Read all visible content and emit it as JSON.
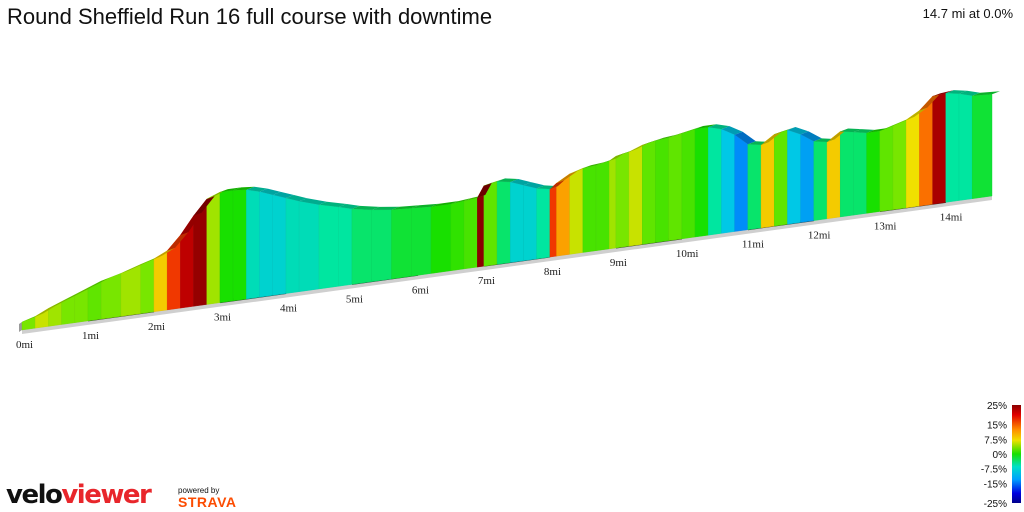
{
  "title": "Round Sheffield Run 16 full course with downtime",
  "summary": "14.7 mi at 0.0%",
  "branding": {
    "logo_part1": "velo",
    "logo_part2": "viewer",
    "powered_by": "powered by",
    "strava": "STRAVA"
  },
  "colors": {
    "logo_red": "#e8262b",
    "strava_orange": "#fc4c02",
    "base_line": "#cfcfcf",
    "mile_marker": "#333333"
  },
  "chart_data": {
    "type": "area",
    "xlabel": "",
    "ylabel": "",
    "x_unit": "mi",
    "x_range": [
      0,
      14.7
    ],
    "tick_labels": [
      "0mi",
      "1mi",
      "2mi",
      "3mi",
      "4mi",
      "5mi",
      "6mi",
      "7mi",
      "8mi",
      "9mi",
      "10mi",
      "11mi",
      "12mi",
      "13mi",
      "14mi"
    ],
    "profile": {
      "x": [
        0,
        0.2,
        0.4,
        0.6,
        0.8,
        1.0,
        1.2,
        1.5,
        1.8,
        2.0,
        2.2,
        2.4,
        2.6,
        2.8,
        3.0,
        3.2,
        3.4,
        3.6,
        3.8,
        4.0,
        4.2,
        4.5,
        4.8,
        5.0,
        5.3,
        5.6,
        5.9,
        6.2,
        6.5,
        6.7,
        6.9,
        7.0,
        7.2,
        7.4,
        7.6,
        7.8,
        8.0,
        8.1,
        8.3,
        8.5,
        8.7,
        8.9,
        9.0,
        9.2,
        9.4,
        9.6,
        9.8,
        10.0,
        10.2,
        10.4,
        10.6,
        10.8,
        11.0,
        11.2,
        11.4,
        11.6,
        11.8,
        12.0,
        12.2,
        12.4,
        12.6,
        12.8,
        13.0,
        13.2,
        13.4,
        13.6,
        13.8,
        14.0,
        14.2,
        14.4,
        14.7
      ],
      "elevation": [
        0,
        3,
        8,
        12,
        16,
        20,
        24,
        28,
        33,
        36,
        41,
        52,
        66,
        78,
        82,
        82,
        81,
        78,
        74,
        70,
        66,
        61,
        57,
        54,
        51,
        49,
        48,
        47,
        47,
        48,
        49,
        58,
        60,
        58,
        54,
        50,
        48,
        52,
        58,
        61,
        62,
        64,
        67,
        69,
        73,
        75,
        76,
        78,
        80,
        80,
        77,
        71,
        62,
        60,
        67,
        69,
        64,
        57,
        55,
        62,
        60,
        58,
        58,
        61,
        64,
        70,
        80,
        81,
        79,
        76,
        75
      ],
      "gradient_pct": [
        2,
        4,
        6,
        5,
        4,
        4,
        3,
        4,
        5,
        4,
        8,
        14,
        20,
        24,
        5,
        0,
        0,
        -4,
        -5,
        -5,
        -4,
        -4,
        -3,
        -3,
        -2,
        -2,
        -1,
        -1,
        0,
        1,
        2,
        25,
        3,
        -2,
        -5,
        -5,
        -3,
        14,
        10,
        6,
        2,
        2,
        5,
        4,
        6,
        3,
        2,
        3,
        2,
        0,
        -3,
        -6,
        -9,
        -2,
        8,
        3,
        -6,
        -8,
        -2,
        8,
        -2,
        -2,
        0,
        3,
        4,
        7,
        12,
        22,
        -3,
        -3,
        -1
      ]
    },
    "legend": {
      "ticks": [
        "25%",
        "15%",
        "7.5%",
        "0%",
        "-7.5%",
        "-15%",
        "-25%"
      ],
      "values": [
        25,
        15,
        7.5,
        0,
        -7.5,
        -15,
        -25
      ]
    }
  }
}
